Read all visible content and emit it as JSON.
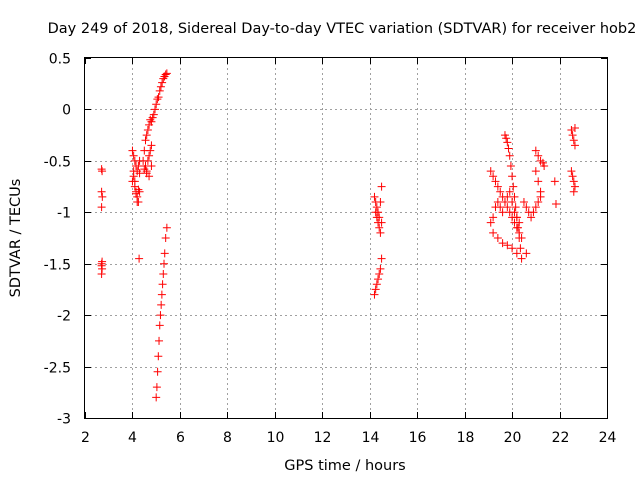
{
  "chart_data": {
    "type": "scatter",
    "title": "Day 249 of 2018, Sidereal Day-to-day VTEC variation (SDTVAR) for receiver hob2",
    "xlabel": "GPS time / hours",
    "ylabel": "SDTVAR / TECUs",
    "xlim": [
      2,
      24
    ],
    "ylim": [
      -3,
      0.5
    ],
    "xticks": [
      "2",
      "4",
      "6",
      "8",
      "10",
      "12",
      "14",
      "16",
      "18",
      "20",
      "22",
      "24"
    ],
    "yticks": [
      "0.5",
      "0",
      "-0.5",
      "-1",
      "-1.5",
      "-2",
      "-2.5",
      "-3"
    ],
    "grid": true,
    "marker": "+",
    "color": "#ff0000",
    "series": [
      {
        "name": "hob2",
        "x": [
          2.7,
          2.72,
          2.7,
          2.73,
          2.7,
          2.72,
          2.7,
          2.72,
          2.7,
          2.7,
          4.0,
          4.05,
          4.1,
          4.15,
          4.2,
          4.25,
          4.3,
          4.05,
          4.1,
          4.15,
          4.2,
          4.25,
          4.3,
          4.0,
          4.05,
          4.1,
          4.15,
          4.2,
          4.25,
          4.3,
          4.45,
          4.5,
          4.55,
          4.6,
          4.65,
          4.7,
          4.75,
          4.8,
          4.85,
          4.9,
          4.95,
          5.0,
          5.05,
          5.1,
          5.15,
          5.2,
          5.25,
          5.3,
          5.35,
          5.4,
          5.45,
          4.55,
          4.6,
          4.65,
          4.7,
          4.75,
          4.8,
          4.5,
          4.6,
          4.7,
          4.8,
          5.0,
          5.03,
          5.06,
          5.09,
          5.12,
          5.15,
          5.18,
          5.21,
          5.24,
          5.27,
          5.3,
          5.33,
          5.36,
          5.4,
          5.45,
          4.28,
          14.2,
          14.25,
          14.3,
          14.35,
          14.4,
          14.45,
          14.5,
          14.25,
          14.3,
          14.35,
          14.4,
          14.45,
          14.5,
          14.2,
          14.25,
          14.3,
          14.35,
          14.4,
          14.45,
          14.5,
          19.1,
          19.2,
          19.3,
          19.4,
          19.5,
          19.6,
          19.7,
          19.8,
          19.9,
          20.0,
          20.1,
          20.2,
          20.3,
          20.4,
          19.7,
          19.75,
          19.8,
          19.85,
          19.9,
          19.95,
          20.0,
          20.05,
          20.1,
          20.15,
          20.2,
          20.25,
          20.3,
          20.35,
          19.1,
          19.2,
          19.3,
          19.4,
          19.5,
          19.6,
          19.7,
          19.8,
          19.9,
          20.0,
          20.1,
          20.2,
          20.3,
          19.2,
          19.4,
          19.6,
          19.8,
          20.0,
          20.2,
          20.4,
          20.6,
          20.5,
          20.6,
          20.7,
          20.8,
          20.9,
          21.0,
          21.1,
          21.2,
          21.0,
          21.1,
          21.2,
          21.3,
          21.35,
          21.0,
          21.1,
          21.2,
          21.8,
          21.85,
          22.5,
          22.55,
          22.6,
          22.65,
          22.5,
          22.55,
          22.6,
          22.65,
          22.6,
          22.65
        ],
        "y": [
          -0.58,
          -0.6,
          -0.8,
          -0.85,
          -0.95,
          -1.48,
          -1.52,
          -1.55,
          -1.6,
          -1.5,
          -0.4,
          -0.45,
          -0.5,
          -0.55,
          -0.6,
          -0.55,
          -0.5,
          -0.6,
          -0.7,
          -0.8,
          -0.85,
          -0.9,
          -0.8,
          -0.7,
          -0.65,
          -0.75,
          -0.82,
          -0.9,
          -0.78,
          -0.62,
          -0.5,
          -0.4,
          -0.3,
          -0.25,
          -0.2,
          -0.15,
          -0.1,
          -0.12,
          -0.08,
          -0.05,
          0.0,
          0.05,
          0.1,
          0.12,
          0.18,
          0.22,
          0.26,
          0.3,
          0.32,
          0.34,
          0.35,
          -0.55,
          -0.6,
          -0.5,
          -0.45,
          -0.4,
          -0.35,
          -0.58,
          -0.62,
          -0.65,
          -0.55,
          -2.8,
          -2.7,
          -2.55,
          -2.4,
          -2.25,
          -2.1,
          -2.0,
          -1.9,
          -1.8,
          -1.7,
          -1.6,
          -1.5,
          -1.4,
          -1.25,
          -1.15,
          -1.45,
          -0.85,
          -0.9,
          -0.95,
          -1.0,
          -1.05,
          -0.9,
          -0.75,
          -1.0,
          -1.05,
          -1.1,
          -1.15,
          -1.2,
          -1.1,
          -1.8,
          -1.75,
          -1.7,
          -1.65,
          -1.6,
          -1.55,
          -1.45,
          -0.6,
          -0.65,
          -0.7,
          -0.75,
          -0.8,
          -0.85,
          -0.9,
          -0.95,
          -1.0,
          -1.05,
          -1.1,
          -1.15,
          -1.2,
          -1.25,
          -0.25,
          -0.28,
          -0.32,
          -0.38,
          -0.45,
          -0.55,
          -0.65,
          -0.75,
          -0.85,
          -0.95,
          -1.05,
          -1.15,
          -1.25,
          -1.35,
          -1.1,
          -1.05,
          -0.95,
          -0.9,
          -0.95,
          -1.0,
          -0.9,
          -0.85,
          -0.8,
          -0.9,
          -1.0,
          -1.05,
          -1.1,
          -1.2,
          -1.25,
          -1.3,
          -1.32,
          -1.35,
          -1.4,
          -1.45,
          -1.4,
          -0.9,
          -0.95,
          -1.0,
          -1.05,
          -1.0,
          -0.95,
          -0.9,
          -0.85,
          -0.4,
          -0.45,
          -0.5,
          -0.52,
          -0.55,
          -0.6,
          -0.7,
          -0.8,
          -0.7,
          -0.92,
          -0.2,
          -0.25,
          -0.3,
          -0.35,
          -0.6,
          -0.65,
          -0.7,
          -0.75,
          -0.8,
          -0.18
        ]
      }
    ]
  }
}
